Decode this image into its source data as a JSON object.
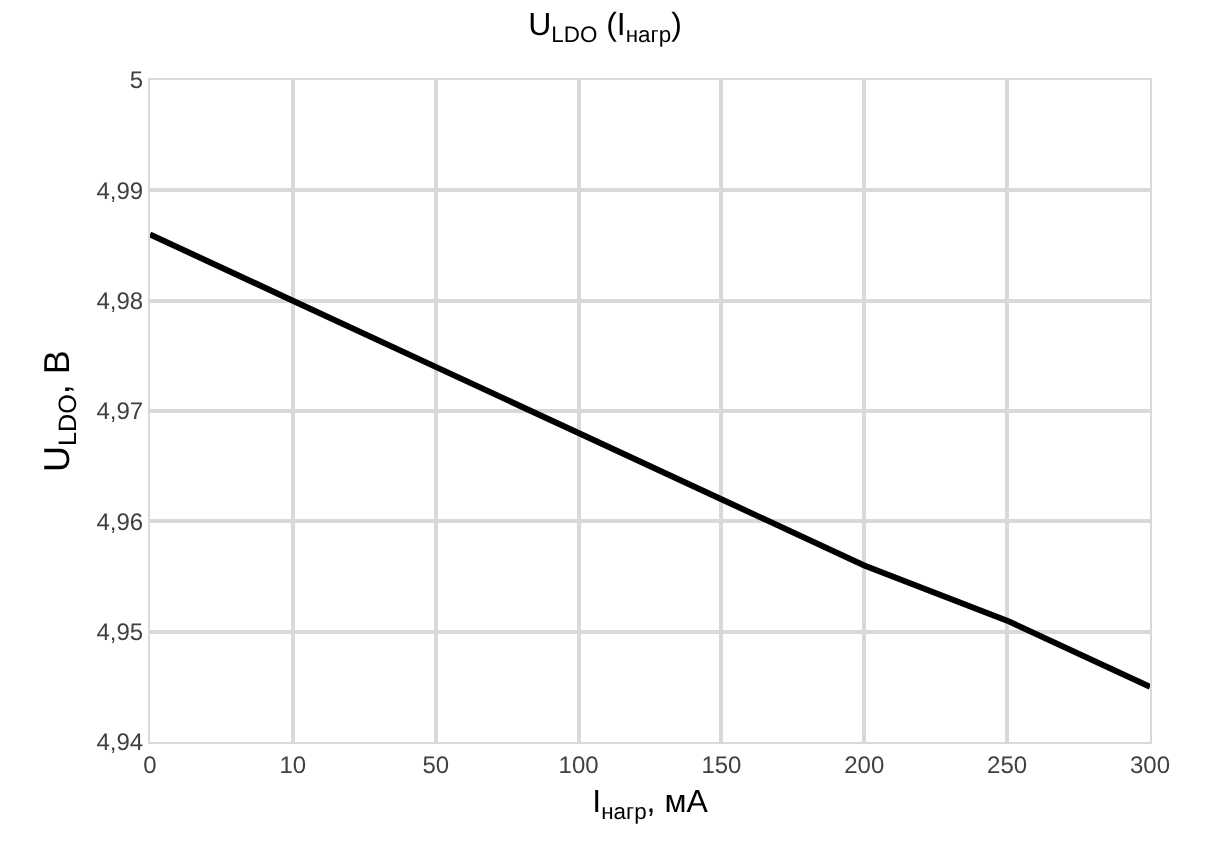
{
  "chart_data": {
    "type": "line",
    "title": "U$_{LDO}$ (I$_{нагр}$)",
    "xlabel": "I$_{нагр}$, мА",
    "ylabel": "U$_{LDO}$, В",
    "categories": [
      "0",
      "10",
      "50",
      "100",
      "150",
      "200",
      "250",
      "300"
    ],
    "series": [
      {
        "color": "#000000",
        "values": [
          4.986,
          4.98,
          4.974,
          4.968,
          4.962,
          4.956,
          4.951,
          4.945
        ]
      }
    ],
    "ylim": [
      4.94,
      5
    ],
    "yticks": [
      {
        "value": 4.94,
        "label": "4,94"
      },
      {
        "value": 4.95,
        "label": "4,95"
      },
      {
        "value": 4.96,
        "label": "4,96"
      },
      {
        "value": 4.97,
        "label": "4,97"
      },
      {
        "value": 4.98,
        "label": "4,98"
      },
      {
        "value": 4.99,
        "label": "4,99"
      },
      5
    ],
    "grid": true,
    "marker": "none",
    "line_style": "solid"
  }
}
